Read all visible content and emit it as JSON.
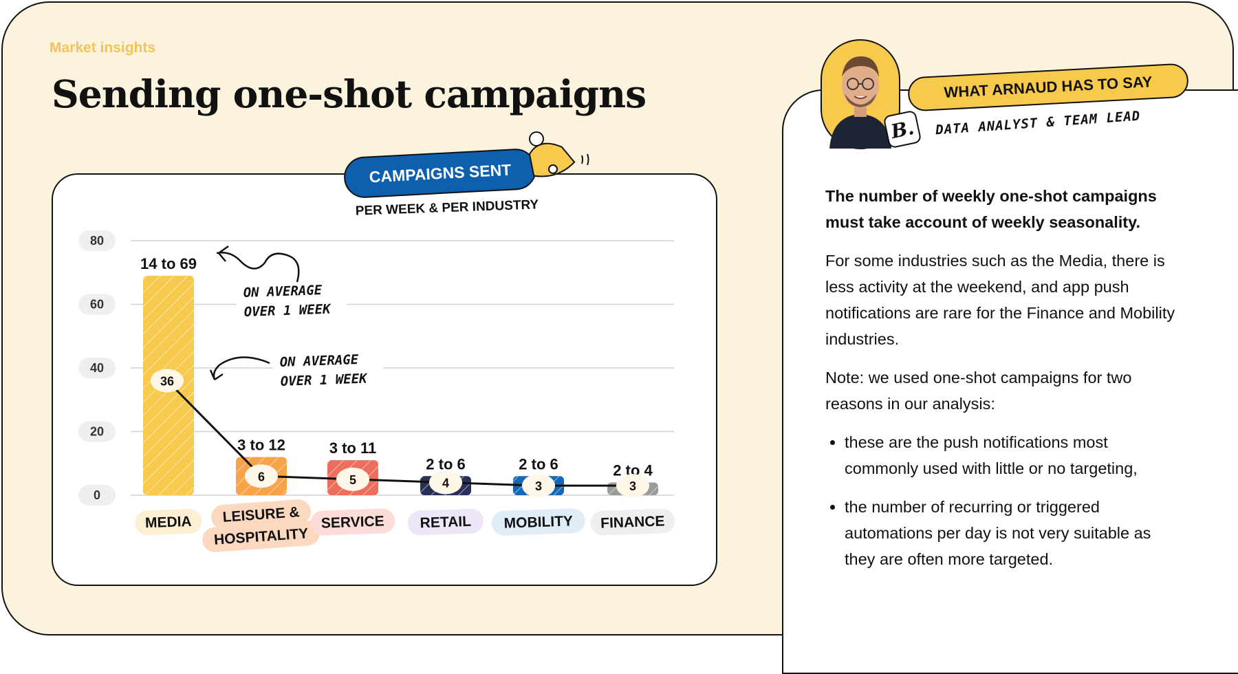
{
  "header": {
    "eyebrow": "Market insights",
    "title": "Sending one-shot campaigns"
  },
  "card": {
    "badge": "CAMPAIGNS SENT",
    "subtitle": "PER WEEK & PER INDUSTRY"
  },
  "chart_data": {
    "type": "bar",
    "y_ticks": [
      "80",
      "60",
      "40",
      "20",
      "0"
    ],
    "ylim": [
      0,
      80
    ],
    "categories": [
      "MEDIA",
      "LEISURE & HOSPITALITY",
      "SERVICE",
      "RETAIL",
      "MOBILITY",
      "FINANCE"
    ],
    "category_lines": [
      [
        "MEDIA"
      ],
      [
        "LEISURE &",
        "HOSPITALITY"
      ],
      [
        "SERVICE"
      ],
      [
        "RETAIL"
      ],
      [
        "MOBILITY"
      ],
      [
        "FINANCE"
      ]
    ],
    "range_labels": [
      "14 to 69",
      "3 to 12",
      "3 to 11",
      "2 to 6",
      "2 to 6",
      "2 to 4"
    ],
    "range_min": [
      14,
      3,
      3,
      2,
      2,
      2
    ],
    "range_max": [
      69,
      12,
      11,
      6,
      6,
      4
    ],
    "average": [
      36,
      6,
      5,
      4,
      3,
      3
    ],
    "average_labels": [
      "36",
      "6",
      "5",
      "4",
      "3",
      "3"
    ],
    "bar_colors": [
      "#f7c94c",
      "#f8a24a",
      "#ee6e5d",
      "#2a2f55",
      "#1568b5",
      "#9a9a9a"
    ],
    "label_bg_colors": [
      "#fcefd4",
      "#fbd8bf",
      "#fbdcd6",
      "#ece6f6",
      "#e1ecf9",
      "#efefef"
    ],
    "annotations": [
      {
        "lines": [
          "ON AVERAGE",
          "OVER 1 WEEK"
        ]
      },
      {
        "lines": [
          "ON AVERAGE",
          "OVER 1 WEEK"
        ]
      }
    ],
    "grid": true
  },
  "profile": {
    "heading": "WHAT ARNAUD HAS TO SAY",
    "role": "DATA ANALYST  &  TEAM LEAD",
    "logo_letter": "B."
  },
  "body": {
    "lead": "The number of weekly one-shot campaigns must take account of weekly seasonality.",
    "para1": "For some industries such as the Media, there is less activity at the weekend, and app push notifications are rare for the Finance and Mobility industries.",
    "para2": "Note: we used one-shot campaigns for two reasons in our analysis:",
    "bullets": [
      "these are the push notifications most commonly used with little or no targeting,",
      "the number of recurring or triggered automations per day is not very suitable as they are often more targeted."
    ]
  },
  "colors": {
    "background": "#fcf3de",
    "accent_blue": "#0e5fad",
    "accent_yellow": "#f7c94c",
    "eyebrow": "#f2c35a"
  }
}
